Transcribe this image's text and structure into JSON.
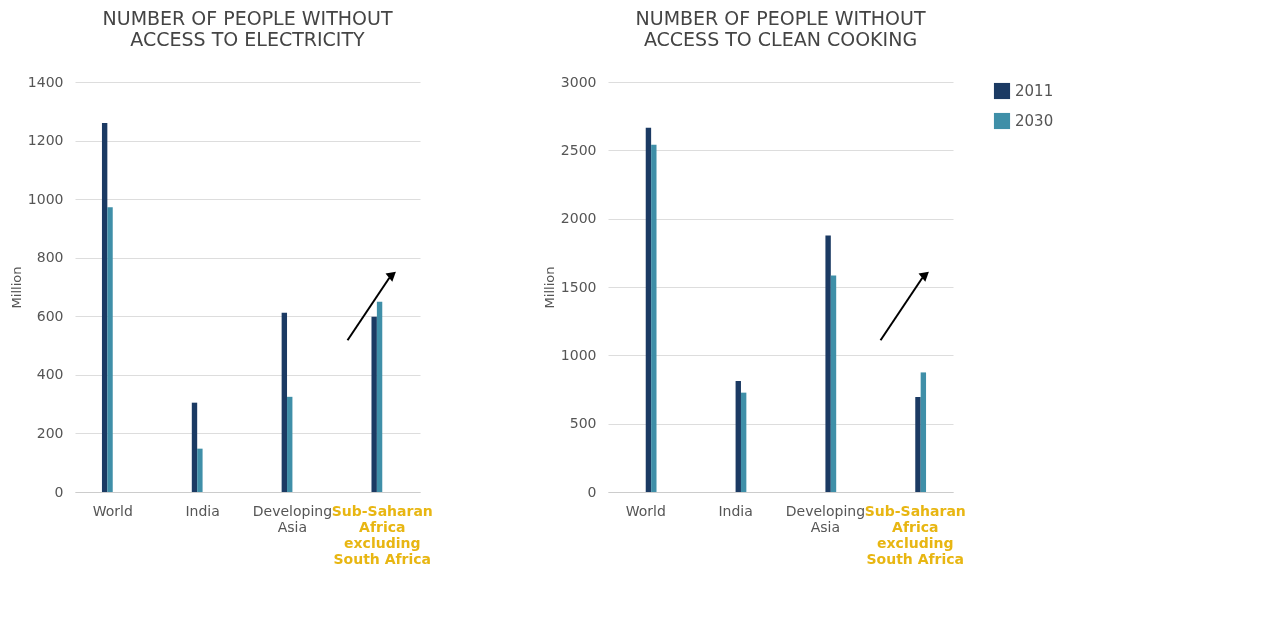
{
  "chart_data": [
    {
      "type": "bar",
      "title": "NUMBER OF PEOPLE WITHOUT ACCESS TO ELECTRICITY",
      "ylabel": "Million",
      "categories": [
        "World",
        "India",
        "Developing Asia",
        "Sub-Saharan Africa excluding South Africa"
      ],
      "series": [
        {
          "color": "#1b3a63",
          "values": [
            1260,
            305,
            612,
            598
          ]
        },
        {
          "color": "#3f8fa8",
          "values": [
            972,
            148,
            325,
            650
          ]
        }
      ],
      "ylim": [
        0,
        1400
      ],
      "yticks": [
        0,
        200,
        400,
        600,
        800,
        1000,
        1200,
        1400
      ],
      "grid": "y",
      "legend": false
    },
    {
      "type": "bar",
      "title": "NUMBER OF PEOPLE WITHOUT ACCESS TO CLEAN COOKING",
      "ylabel": "Million",
      "categories": [
        "World",
        "India",
        "Developing Asia",
        "Sub-Saharan Africa excluding South Africa"
      ],
      "series": [
        {
          "name": "2011",
          "color": "#1b3a63",
          "values": [
            2665,
            812,
            1877,
            695
          ]
        },
        {
          "name": "2030",
          "color": "#3f8fa8",
          "values": [
            2540,
            727,
            1585,
            875
          ]
        }
      ],
      "ylim": [
        0,
        3000
      ],
      "yticks": [
        0,
        500,
        1000,
        1500,
        2000,
        2500,
        3000
      ],
      "grid": "y",
      "legend": "top right"
    }
  ]
}
